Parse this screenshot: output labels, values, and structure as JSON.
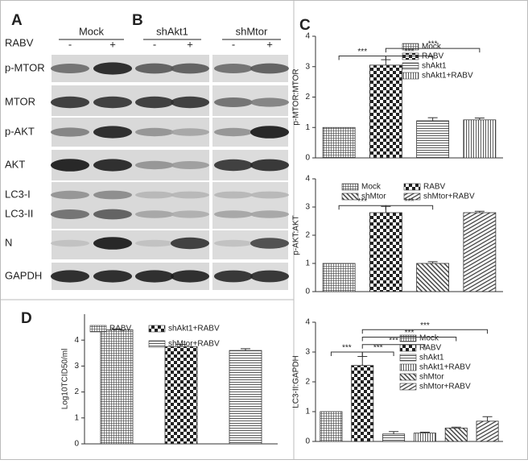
{
  "panels": {
    "a": "A",
    "b": "B"
  },
  "blot": {
    "treatment": "RABV",
    "groups": [
      "Mock",
      "shAkt1",
      "shMtor"
    ],
    "lanes": [
      "-",
      "+",
      "-",
      "+",
      "-",
      "+"
    ],
    "rows": [
      "p-MTOR",
      "MTOR",
      "p-AKT",
      "AKT",
      "LC3-I",
      "LC3-II",
      "N",
      "GAPDH"
    ]
  },
  "chart_data": [
    {
      "type": "bar",
      "panel": "C",
      "ylabel": "p-MTOR:MTOR",
      "categories": [
        "Mock",
        "RABV",
        "shAkt1",
        "shAkt1+RABV"
      ],
      "values": [
        1.0,
        3.05,
        1.22,
        1.25
      ],
      "errors": [
        0,
        0.18,
        0.1,
        0.06
      ],
      "patterns": [
        "grid",
        "checker",
        "hlines",
        "vlines"
      ],
      "ylim": [
        0,
        4
      ],
      "yticks": [
        0,
        1,
        2,
        3,
        4
      ],
      "brackets": [
        {
          "label": "***",
          "between": [
            0,
            1
          ],
          "y": 3.35
        },
        {
          "label": "***",
          "between": [
            1,
            2
          ],
          "y": 3.35
        },
        {
          "label": "***",
          "between": [
            1,
            3
          ],
          "y": 3.6
        }
      ]
    },
    {
      "type": "bar",
      "ylabel": "p-AKT:AKT",
      "categories": [
        "Mock",
        "RABV",
        "shMtor",
        "shMtor+RABV"
      ],
      "values": [
        1.0,
        2.8,
        1.0,
        2.8
      ],
      "errors": [
        0,
        0.22,
        0.06,
        0.05
      ],
      "patterns": [
        "grid",
        "checker",
        "diag",
        "diag2"
      ],
      "ylim": [
        0,
        4
      ],
      "yticks": [
        0,
        1,
        2,
        3,
        4
      ],
      "brackets": [
        {
          "label": "***",
          "between": [
            0,
            1
          ],
          "y": 3.05
        },
        {
          "label": "***",
          "between": [
            1,
            2
          ],
          "y": 3.05
        }
      ]
    },
    {
      "type": "bar",
      "ylabel": "LC3-II:GAPDH",
      "categories": [
        "Mock",
        "RABV",
        "shAkt1",
        "shAkt1+RABV",
        "shMtor",
        "shMtor+RABV"
      ],
      "values": [
        1.0,
        2.55,
        0.25,
        0.28,
        0.45,
        0.68
      ],
      "errors": [
        0,
        0.3,
        0.08,
        0.03,
        0.03,
        0.15
      ],
      "patterns": [
        "grid",
        "checker",
        "hlines",
        "vlines",
        "diag",
        "diag2"
      ],
      "ylim": [
        0,
        4
      ],
      "yticks": [
        0,
        1,
        2,
        3,
        4
      ],
      "brackets": [
        {
          "label": "***",
          "between": [
            0,
            1
          ],
          "y": 3.0
        },
        {
          "label": "***",
          "between": [
            1,
            2
          ],
          "y": 3.0
        },
        {
          "label": "***",
          "between": [
            1,
            3
          ],
          "y": 3.25
        },
        {
          "label": "***",
          "between": [
            1,
            4
          ],
          "y": 3.5
        },
        {
          "label": "***",
          "between": [
            1,
            5
          ],
          "y": 3.75
        }
      ]
    },
    {
      "type": "bar",
      "panel": "D",
      "ylabel": "Log10TCID50/ml",
      "categories": [
        "RABV",
        "shAkt1+RABV",
        "shMtor+RABV"
      ],
      "values": [
        4.4,
        3.75,
        3.6
      ],
      "errors": [
        0.03,
        0.08,
        0.07
      ],
      "patterns": [
        "grid",
        "checker",
        "hlines"
      ],
      "ylim": [
        0,
        5
      ],
      "yticks": [
        0,
        1,
        2,
        3,
        4
      ],
      "brackets": []
    }
  ]
}
